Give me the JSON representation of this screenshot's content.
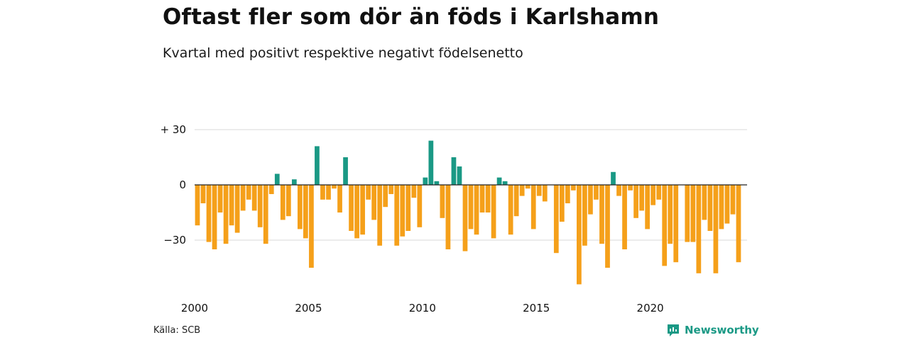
{
  "header": {
    "title": "Oftast fler som dör än föds i Karlshamn",
    "subtitle": "Kvartal med positivt respektive negativt födelsenetto"
  },
  "footer": {
    "source": "Källa: SCB",
    "brand": "Newsworthy",
    "brand_icon": "newsworthy-logo-icon"
  },
  "colors": {
    "positive": "#1a9985",
    "negative": "#f5a01a",
    "grid": "#d9d9d9",
    "zero_line": "#222222",
    "brand": "#1a9985"
  },
  "chart_data": {
    "type": "bar",
    "title": "Oftast fler som dör än föds i Karlshamn",
    "subtitle": "Kvartal med positivt respektive negativt födelsenetto",
    "xlabel": "",
    "ylabel": "",
    "ylim": [
      -55,
      35
    ],
    "yticks": [
      30,
      0,
      -30
    ],
    "ytick_labels": [
      "+ 30",
      "0",
      "−30"
    ],
    "xticks": [
      2000,
      2005,
      2010,
      2015,
      2020
    ],
    "xtick_labels": [
      "2000",
      "2005",
      "2010",
      "2015",
      "2020"
    ],
    "grid": true,
    "legend": "none",
    "x_start": "2000 Q1",
    "x_end": "2024 Q1",
    "x_step": "quarter",
    "values": [
      -22,
      -10,
      -31,
      -35,
      -15,
      -32,
      -22,
      -26,
      -14,
      -8,
      -14,
      -23,
      -32,
      -5,
      6,
      -19,
      -17,
      3,
      -24,
      -29,
      -45,
      21,
      -8,
      -8,
      -2,
      -15,
      15,
      -25,
      -29,
      -27,
      -8,
      -19,
      -33,
      -12,
      -5,
      -33,
      -28,
      -25,
      -7,
      -23,
      4,
      24,
      2,
      -18,
      -35,
      15,
      10,
      -36,
      -24,
      -27,
      -15,
      -15,
      -29,
      4,
      2,
      -27,
      -17,
      -6,
      -2,
      -24,
      -6,
      -9,
      0,
      -37,
      -20,
      -10,
      -3,
      -54,
      -33,
      -16,
      -8,
      -32,
      -45,
      7,
      -6,
      -35,
      -3,
      -18,
      -14,
      -24,
      -11,
      -8,
      -44,
      -32,
      -42,
      0,
      -31,
      -31,
      -48,
      -19,
      -25,
      -48,
      -24,
      -21,
      -16,
      -42,
      0
    ]
  }
}
